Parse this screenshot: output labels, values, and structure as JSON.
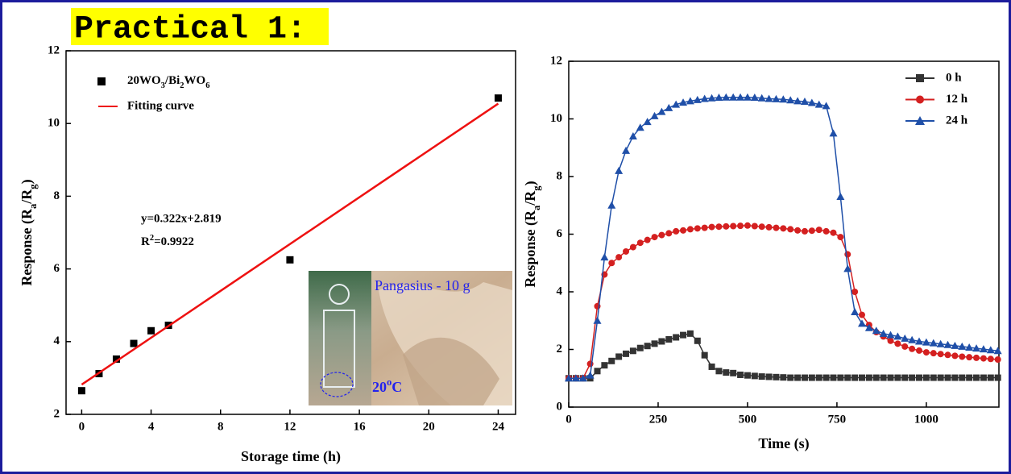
{
  "header": {
    "title": "Practical 1:"
  },
  "chart_data": [
    {
      "type": "scatter",
      "xlabel": "Storage time (h)",
      "ylabel": "Response (Ra/Rg)",
      "xlim": [
        -0.9,
        25
      ],
      "ylim": [
        2,
        12
      ],
      "xticks": [
        0,
        4,
        8,
        12,
        16,
        20,
        24
      ],
      "yticks": [
        2,
        4,
        6,
        8,
        10,
        12
      ],
      "legend": "upper left",
      "annotations": [
        "y=0.322x+2.819",
        "R2=0.9922",
        "Pangasius - 10 g",
        "20oC"
      ],
      "series": [
        {
          "name": "20WO3/Bi2WO6",
          "color": "#000000",
          "marker": "square",
          "x": [
            0,
            1,
            2,
            3,
            4,
            5,
            12,
            24
          ],
          "values": [
            2.65,
            3.12,
            3.52,
            3.95,
            4.3,
            4.45,
            6.25,
            10.7
          ]
        },
        {
          "name": "Fitting curve",
          "color": "#ee1111",
          "type": "line",
          "x": [
            0,
            24
          ],
          "values": [
            2.819,
            10.547
          ]
        }
      ]
    },
    {
      "type": "line",
      "xlabel": "Time (s)",
      "ylabel": "Response (Ra/Rg)",
      "xlim": [
        0,
        1203
      ],
      "ylim": [
        0,
        12
      ],
      "xticks": [
        0,
        250,
        500,
        750,
        1000
      ],
      "yticks": [
        0,
        2,
        4,
        6,
        8,
        10,
        12
      ],
      "legend": "upper right",
      "x": [
        0,
        20,
        40,
        60,
        80,
        100,
        120,
        140,
        160,
        180,
        200,
        220,
        240,
        260,
        280,
        300,
        320,
        340,
        360,
        380,
        400,
        420,
        440,
        460,
        480,
        500,
        520,
        540,
        560,
        580,
        600,
        620,
        640,
        660,
        680,
        700,
        720,
        740,
        760,
        780,
        800,
        820,
        840,
        860,
        880,
        900,
        920,
        940,
        960,
        980,
        1000,
        1020,
        1040,
        1060,
        1080,
        1100,
        1120,
        1140,
        1160,
        1180,
        1200
      ],
      "series": [
        {
          "name": "0 h",
          "color": "#333333",
          "marker": "square",
          "values": [
            1,
            1,
            1,
            1,
            1.25,
            1.45,
            1.6,
            1.75,
            1.85,
            1.95,
            2.05,
            2.12,
            2.2,
            2.28,
            2.35,
            2.42,
            2.5,
            2.55,
            2.3,
            1.8,
            1.4,
            1.25,
            1.2,
            1.18,
            1.12,
            1.1,
            1.08,
            1.06,
            1.05,
            1.04,
            1.03,
            1.02,
            1.02,
            1.02,
            1.02,
            1.02,
            1.02,
            1.02,
            1.02,
            1.02,
            1.02,
            1.02,
            1.02,
            1.02,
            1.02,
            1.02,
            1.02,
            1.02,
            1.02,
            1.02,
            1.02,
            1.02,
            1.02,
            1.02,
            1.02,
            1.02,
            1.02,
            1.02,
            1.02,
            1.02,
            1.02
          ]
        },
        {
          "name": "12 h",
          "color": "#d42020",
          "marker": "circle",
          "values": [
            1,
            1,
            1,
            1.5,
            3.5,
            4.6,
            5.0,
            5.2,
            5.4,
            5.55,
            5.7,
            5.8,
            5.9,
            5.97,
            6.03,
            6.1,
            6.13,
            6.17,
            6.2,
            6.22,
            6.25,
            6.26,
            6.27,
            6.28,
            6.29,
            6.3,
            6.28,
            6.26,
            6.24,
            6.22,
            6.2,
            6.17,
            6.13,
            6.1,
            6.12,
            6.15,
            6.1,
            6.05,
            5.9,
            5.3,
            4.0,
            3.2,
            2.85,
            2.6,
            2.45,
            2.3,
            2.2,
            2.1,
            2.02,
            1.96,
            1.9,
            1.87,
            1.84,
            1.81,
            1.78,
            1.75,
            1.73,
            1.71,
            1.69,
            1.67,
            1.65
          ]
        },
        {
          "name": "24 h",
          "color": "#1f4fa8",
          "marker": "triangle",
          "values": [
            1,
            1,
            1,
            1.1,
            3.0,
            5.2,
            7.0,
            8.2,
            8.9,
            9.4,
            9.7,
            9.9,
            10.1,
            10.25,
            10.38,
            10.5,
            10.57,
            10.62,
            10.66,
            10.7,
            10.72,
            10.74,
            10.75,
            10.75,
            10.75,
            10.75,
            10.74,
            10.72,
            10.7,
            10.69,
            10.68,
            10.65,
            10.62,
            10.6,
            10.56,
            10.5,
            10.45,
            9.5,
            7.3,
            4.8,
            3.3,
            2.9,
            2.75,
            2.65,
            2.55,
            2.5,
            2.45,
            2.38,
            2.33,
            2.28,
            2.25,
            2.22,
            2.19,
            2.16,
            2.13,
            2.1,
            2.07,
            2.04,
            2.01,
            1.98,
            1.95
          ]
        }
      ]
    }
  ]
}
